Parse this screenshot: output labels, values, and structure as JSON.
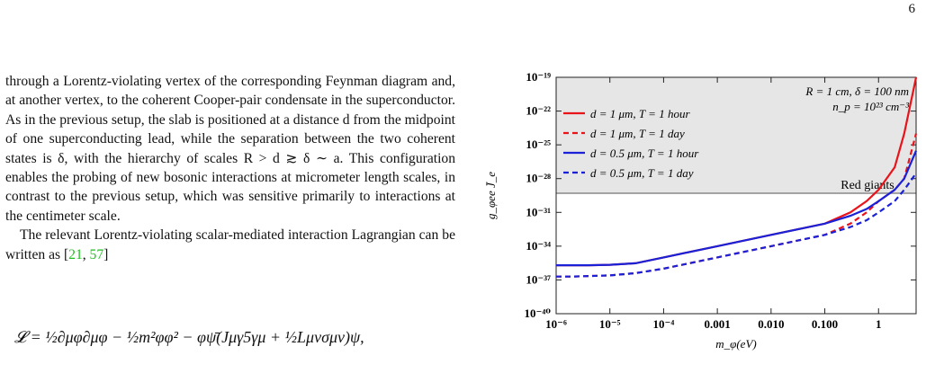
{
  "page_number": "6",
  "text": {
    "paragraph1": "through a Lorentz-violating vertex of the corresponding Feynman diagram and, at another vertex, to the coherent Cooper-pair condensate in the superconductor. As in the previous setup, the slab is positioned at a distance d from the midpoint of one superconducting lead, while the separation between the two coherent states is δ, with the hierarchy of scales R > d ≳ δ ∼ a. This configuration enables the probing of new bosonic interactions at micrometer length scales, in contrast to the previous setup, which was sensitive primarily to interactions at the centimeter scale.",
    "paragraph2_before": "The relevant Lorentz-violating scalar-mediated interaction Lagrangian can be written as [",
    "cite1": "21",
    "cite_sep": ", ",
    "cite2": "57",
    "paragraph2_after": "]",
    "equation": "𝓛 = ½∂μφ∂μφ − ½m²φφ² − φψ̄(Jμγ5γμ + ½Lμνσμν)ψ,"
  },
  "chart_data": {
    "type": "line",
    "xlabel": "m_φ(eV)",
    "ylabel": "g_φee J̄_e",
    "x_log": true,
    "y_log": true,
    "xlim": [
      1e-06,
      5
    ],
    "ylim": [
      1e-40,
      1e-19
    ],
    "x_ticks": [
      {
        "value": 1e-06,
        "label": "10⁻⁶"
      },
      {
        "value": 1e-05,
        "label": "10⁻⁵"
      },
      {
        "value": 0.0001,
        "label": "10⁻⁴"
      },
      {
        "value": 0.001,
        "label": "0.001"
      },
      {
        "value": 0.01,
        "label": "0.010"
      },
      {
        "value": 0.1,
        "label": "0.100"
      },
      {
        "value": 1,
        "label": "1"
      }
    ],
    "y_ticks": [
      {
        "value": 1e-40,
        "label": "10⁻⁴⁰"
      },
      {
        "value": 1e-37,
        "label": "10⁻³⁷"
      },
      {
        "value": 1e-34,
        "label": "10⁻³⁴"
      },
      {
        "value": 1e-31,
        "label": "10⁻³¹"
      },
      {
        "value": 1e-28,
        "label": "10⁻²⁸"
      },
      {
        "value": 1e-25,
        "label": "10⁻²⁵"
      },
      {
        "value": 1e-22,
        "label": "10⁻²²"
      },
      {
        "value": 1e-19,
        "label": "10⁻¹⁹"
      }
    ],
    "bound": {
      "label": "Red giants",
      "y": 5e-30,
      "fill": "#e6e6e6",
      "line_color": "#888888"
    },
    "params_line1": "R = 1 cm, δ = 100 nm",
    "params_line2": "n_p = 10²³ cm⁻³",
    "series": [
      {
        "name": "d = 1 μm, T = 1 hour",
        "color": "#e8141b",
        "dash": "solid",
        "x": [
          1e-06,
          2e-06,
          4e-06,
          1e-05,
          3e-05,
          0.0001,
          0.001,
          0.01,
          0.1,
          0.3,
          0.6,
          1,
          2,
          3,
          5
        ],
        "y": [
          2e-36,
          2e-36,
          2e-36,
          2.2e-36,
          3e-36,
          1e-35,
          1e-34,
          1e-33,
          1e-32,
          1e-31,
          1e-30,
          1e-29,
          1e-27,
          1e-24,
          1e-19
        ]
      },
      {
        "name": "d = 1 μm, T = 1 day",
        "color": "#e8141b",
        "dash": "dashed",
        "x": [
          1e-06,
          2e-06,
          4e-06,
          1e-05,
          3e-05,
          0.0001,
          0.001,
          0.01,
          0.1,
          0.3,
          0.6,
          1,
          2,
          3,
          5
        ],
        "y": [
          2e-37,
          2e-37,
          2.2e-37,
          2.5e-37,
          4e-37,
          1e-36,
          1e-35,
          1e-34,
          1e-33,
          1e-32,
          1e-31,
          1e-30,
          1e-29,
          1e-28,
          1e-24
        ]
      },
      {
        "name": "d = 0.5 μm, T = 1 hour",
        "color": "#1a21d6",
        "dash": "solid",
        "x": [
          1e-06,
          2e-06,
          4e-06,
          1e-05,
          3e-05,
          0.0001,
          0.001,
          0.01,
          0.1,
          0.3,
          0.6,
          1,
          2,
          3,
          5
        ],
        "y": [
          2e-36,
          2e-36,
          2e-36,
          2.2e-36,
          3e-36,
          1e-35,
          1e-34,
          1e-33,
          1e-32,
          5e-32,
          2e-31,
          1e-30,
          1e-29,
          1e-28,
          3e-26
        ]
      },
      {
        "name": "d = 0.5 μm, T = 1 day",
        "color": "#1a21d6",
        "dash": "dashed",
        "x": [
          1e-06,
          2e-06,
          4e-06,
          1e-05,
          3e-05,
          0.0001,
          0.001,
          0.01,
          0.1,
          0.3,
          0.6,
          1,
          2,
          3,
          5
        ],
        "y": [
          2e-37,
          2e-37,
          2.2e-37,
          2.5e-37,
          4e-37,
          1e-36,
          1e-35,
          1e-34,
          1e-33,
          5e-33,
          2e-32,
          1e-31,
          1e-30,
          1e-29,
          3e-28
        ]
      }
    ],
    "legend_position": "top-left"
  }
}
